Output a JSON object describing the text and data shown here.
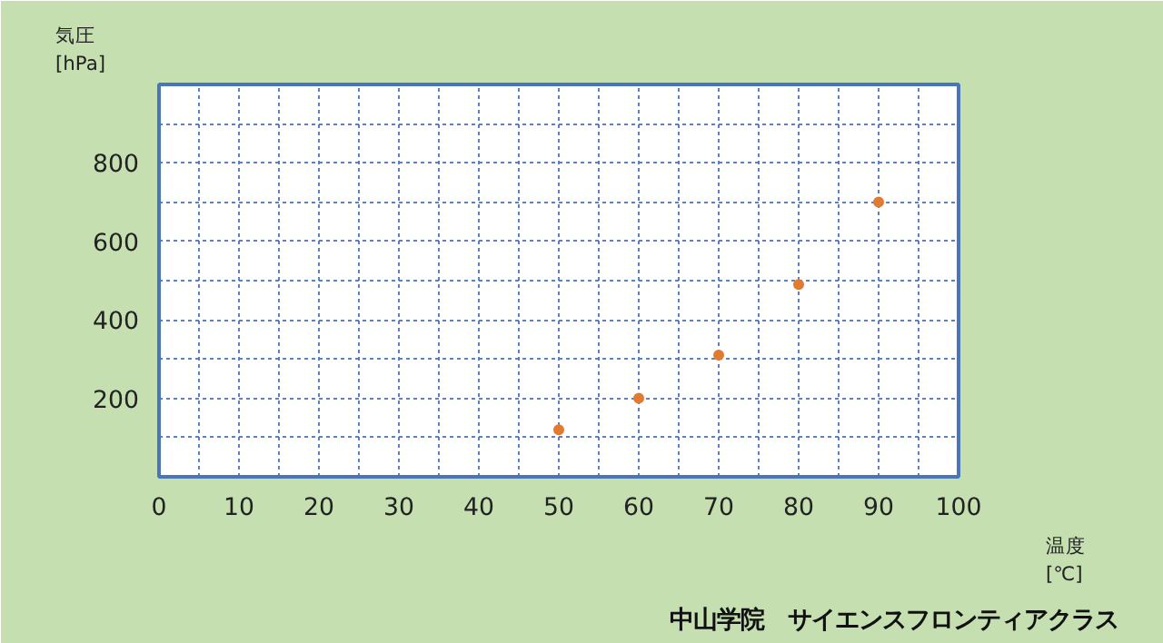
{
  "chart_data": {
    "type": "scatter",
    "xlabel": "温度\n[℃]",
    "ylabel": "気圧\n[hPa]",
    "x": [
      50,
      60,
      70,
      80,
      90
    ],
    "series": [
      {
        "color": "#e07b30",
        "values": [
          120,
          200,
          310,
          490,
          700
        ]
      }
    ],
    "xlim": [
      0,
      100
    ],
    "ylim": [
      0,
      1000
    ],
    "xticks": [
      0,
      {
        "value": 5,
        "label": null
      },
      10,
      {
        "value": 15,
        "label": null
      },
      20,
      {
        "value": 25,
        "label": null
      },
      30,
      {
        "value": 35,
        "label": null
      },
      40,
      {
        "value": 45,
        "label": null
      },
      50,
      {
        "value": 55,
        "label": null
      },
      60,
      {
        "value": 65,
        "label": null
      },
      70,
      {
        "value": 75,
        "label": null
      },
      80,
      {
        "value": 85,
        "label": null
      },
      90,
      {
        "value": 95,
        "label": null
      },
      100
    ],
    "yticks": [
      {
        "value": 100,
        "label": null
      },
      200,
      {
        "value": 300,
        "label": null
      },
      400,
      {
        "value": 500,
        "label": null
      },
      600,
      {
        "value": 700,
        "label": null
      },
      800,
      {
        "value": 900,
        "label": null
      }
    ],
    "grid": true,
    "marker": "circle",
    "annotations": [
      "中山学院　サイエンスフロンティアクラス"
    ]
  }
}
